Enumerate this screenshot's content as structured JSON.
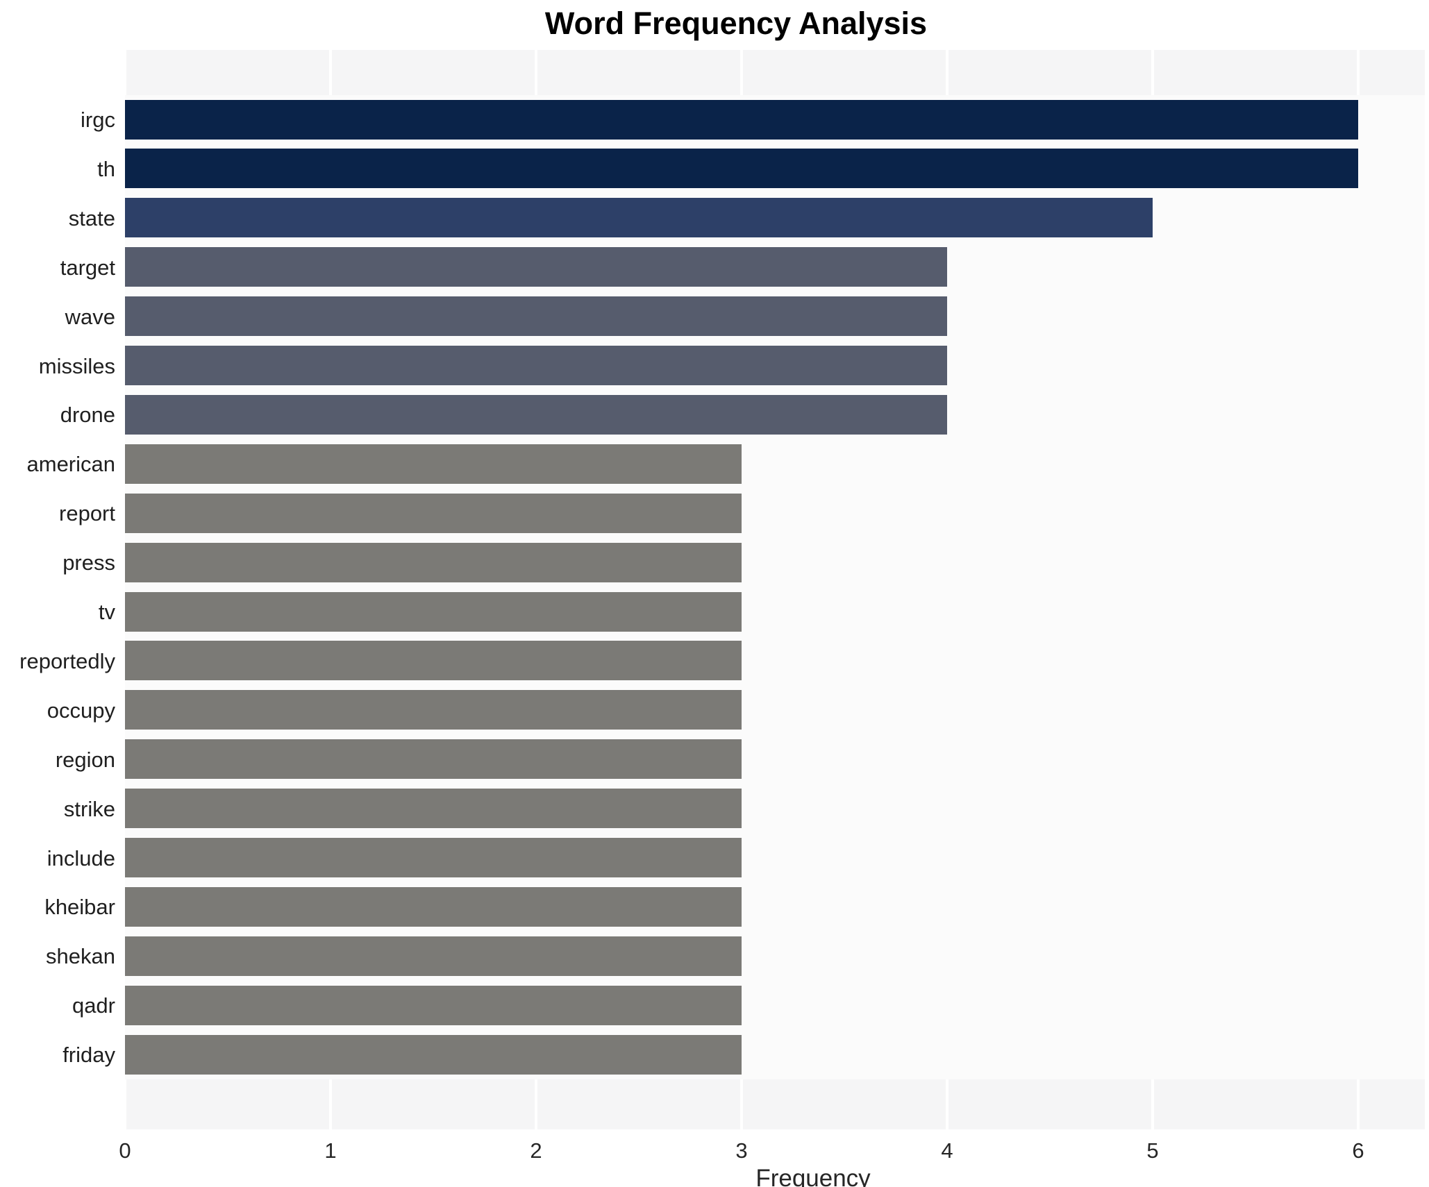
{
  "title": "Word Frequency Analysis",
  "chart_data": {
    "type": "bar",
    "orientation": "horizontal",
    "title": "Word Frequency Analysis",
    "xlabel": "Frequency",
    "ylabel": "",
    "categories": [
      "irgc",
      "th",
      "state",
      "target",
      "wave",
      "missiles",
      "drone",
      "american",
      "report",
      "press",
      "tv",
      "reportedly",
      "occupy",
      "region",
      "strike",
      "include",
      "kheibar",
      "shekan",
      "qadr",
      "friday"
    ],
    "values": [
      6,
      6,
      5,
      4,
      4,
      4,
      4,
      3,
      3,
      3,
      3,
      3,
      3,
      3,
      3,
      3,
      3,
      3,
      3,
      3
    ],
    "xticks": [
      0,
      1,
      2,
      3,
      4,
      5,
      6
    ],
    "xlim": [
      0,
      6.33
    ],
    "grid": true,
    "legend": false,
    "colors_by_value": {
      "6": "#0a2349",
      "5": "#2d4068",
      "4": "#565c6d",
      "3": "#7b7a76"
    },
    "plot_bg_color": "#f5f5f6",
    "row_strip_color": "#fbfbfb",
    "gridline_color": "#ffffff",
    "text_color": "#262626"
  }
}
